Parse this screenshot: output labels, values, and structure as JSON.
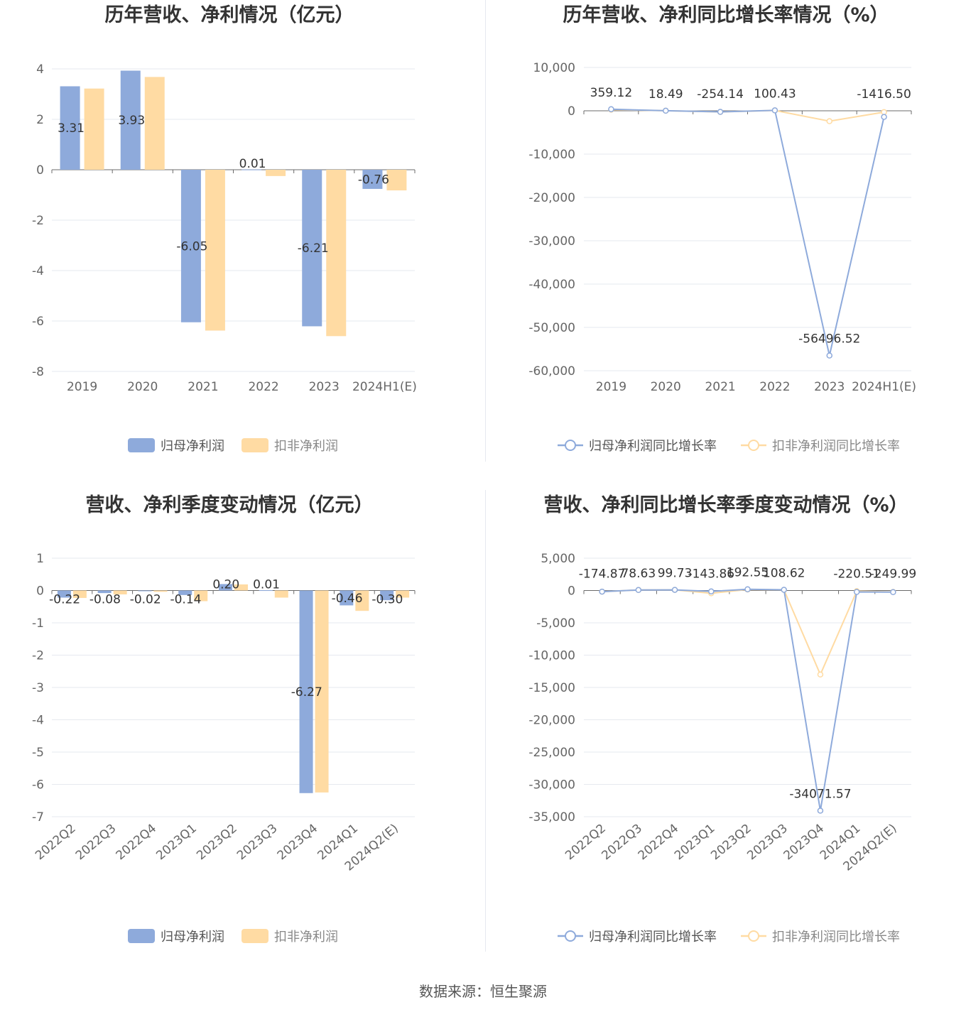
{
  "colors": {
    "primary": "#8eaadb",
    "secondary": "#ffdba3",
    "grid": "#e6e9ef",
    "axis": "#6b6b6b",
    "text": "#333333"
  },
  "source": "数据来源：恒生聚源",
  "chart_data": [
    {
      "type": "bar",
      "title": "历年营收、净利情况（亿元）",
      "categories": [
        "2019",
        "2020",
        "2021",
        "2022",
        "2023",
        "2024H1(E)"
      ],
      "yticks": [
        "4",
        "2",
        "0",
        "-2",
        "-4",
        "-6",
        "-8"
      ],
      "ylim": [
        -8,
        4
      ],
      "grid": true,
      "legend_position": "bottom-center",
      "series": [
        {
          "name": "归母净利润",
          "values": [
            3.31,
            3.93,
            -6.05,
            0.01,
            -6.21,
            -0.76
          ],
          "labels": [
            "3.31",
            "3.93",
            "-6.05",
            "0.01",
            "-6.21",
            "-0.76"
          ]
        },
        {
          "name": "扣非净利润",
          "values": [
            3.22,
            3.68,
            -6.38,
            -0.25,
            -6.6,
            -0.82
          ]
        }
      ]
    },
    {
      "type": "line",
      "title": "历年营收、净利同比增长率情况（%）",
      "categories": [
        "2019",
        "2020",
        "2021",
        "2022",
        "2023",
        "2024H1(E)"
      ],
      "yticks": [
        "10,000",
        "0",
        "-10,000",
        "-20,000",
        "-30,000",
        "-40,000",
        "-50,000",
        "-60,000"
      ],
      "ylim": [
        -60000,
        10000
      ],
      "grid": true,
      "legend_position": "bottom-center",
      "series": [
        {
          "name": "归母净利润同比增长率",
          "values": [
            359.12,
            18.49,
            -254.14,
            100.43,
            -56496.52,
            -1416.5
          ],
          "labels": [
            "359.12",
            "18.49",
            "-254.14",
            "100.43",
            "-56496.52",
            "-1416.50"
          ]
        },
        {
          "name": "扣非净利润同比增长率",
          "values": [
            250,
            20,
            -260,
            80,
            -2400,
            -300
          ]
        }
      ]
    },
    {
      "type": "bar",
      "title": "营收、净利季度变动情况（亿元）",
      "categories": [
        "2022Q2",
        "2022Q3",
        "2022Q4",
        "2023Q1",
        "2023Q2",
        "2023Q3",
        "2023Q4",
        "2024Q1",
        "2024Q2(E)"
      ],
      "yticks": [
        "1",
        "0",
        "-1",
        "-2",
        "-3",
        "-4",
        "-5",
        "-6",
        "-7"
      ],
      "ylim": [
        -7,
        1
      ],
      "grid": true,
      "legend_position": "bottom-center",
      "series": [
        {
          "name": "归母净利润",
          "values": [
            -0.22,
            -0.08,
            -0.02,
            -0.14,
            0.2,
            0.01,
            -6.27,
            -0.46,
            -0.3
          ],
          "labels": [
            "-0.22",
            "-0.08",
            "-0.02",
            "-0.14",
            "0.20",
            "0.01",
            "-6.27",
            "-0.46",
            "-0.30"
          ]
        },
        {
          "name": "扣非净利润",
          "values": [
            -0.23,
            -0.12,
            -0.04,
            -0.33,
            0.19,
            -0.22,
            -6.25,
            -0.63,
            -0.22
          ]
        }
      ]
    },
    {
      "type": "line",
      "title": "营收、净利同比增长率季度变动情况（%）",
      "categories": [
        "2022Q2",
        "2022Q3",
        "2022Q4",
        "2023Q1",
        "2023Q2",
        "2023Q3",
        "2023Q4",
        "2024Q1",
        "2024Q2(E)"
      ],
      "yticks": [
        "5,000",
        "0",
        "-5,000",
        "-10,000",
        "-15,000",
        "-20,000",
        "-25,000",
        "-30,000",
        "-35,000"
      ],
      "ylim": [
        -35000,
        5000
      ],
      "grid": true,
      "legend_position": "bottom-center",
      "series": [
        {
          "name": "归母净利润同比增长率",
          "values": [
            -174.87,
            78.63,
            99.73,
            -143.86,
            192.55,
            108.62,
            -34071.57,
            -220.51,
            -249.99
          ],
          "labels": [
            "-174.87",
            "78.63",
            "99.73",
            "-143.86",
            "192.55",
            "108.62",
            "-34071.57",
            "-220.51",
            "-249.99"
          ]
        },
        {
          "name": "扣非净利润同比增长率",
          "values": [
            -180,
            80,
            95,
            -420,
            150,
            100,
            -13000,
            -100,
            -220
          ]
        }
      ]
    }
  ]
}
